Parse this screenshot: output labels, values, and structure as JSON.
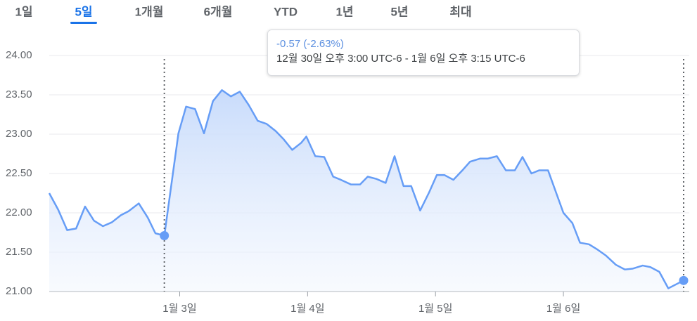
{
  "chart_data": {
    "type": "area-line",
    "tabs": [
      "1일",
      "5일",
      "1개월",
      "6개월",
      "YTD",
      "1년",
      "5년",
      "최대"
    ],
    "selected_tab": "5일",
    "tooltip": {
      "change": "-0.57 (-2.63%)",
      "range": "12월 30일 오후 3:00 UTC-6 - 1월 6일 오후 3:15 UTC-6"
    },
    "x": [
      1.98,
      2.05,
      2.12,
      2.19,
      2.26,
      2.33,
      2.4,
      2.47,
      2.54,
      2.6,
      2.68,
      2.75,
      2.81,
      2.88,
      2.99,
      3.05,
      3.12,
      3.19,
      3.26,
      3.33,
      3.4,
      3.47,
      3.54,
      3.61,
      3.68,
      3.75,
      3.81,
      3.88,
      3.95,
      3.99,
      4.06,
      4.13,
      4.2,
      4.26,
      4.34,
      4.41,
      4.47,
      4.54,
      4.61,
      4.68,
      4.75,
      4.81,
      4.88,
      4.95,
      5.01,
      5.07,
      5.14,
      5.21,
      5.27,
      5.35,
      5.41,
      5.48,
      5.55,
      5.62,
      5.68,
      5.75,
      5.81,
      5.88,
      6.0,
      6.07,
      6.13,
      6.2,
      6.26,
      6.33,
      6.41,
      6.48,
      6.54,
      6.62,
      6.68,
      6.75,
      6.82,
      6.94
    ],
    "series": [
      {
        "color": "#669df6",
        "values": [
          22.25,
          22.04,
          21.78,
          21.8,
          22.08,
          21.9,
          21.83,
          21.88,
          21.97,
          22.02,
          22.12,
          21.94,
          21.74,
          21.71,
          23.01,
          23.35,
          23.32,
          23.01,
          23.42,
          23.56,
          23.48,
          23.54,
          23.37,
          23.17,
          23.13,
          23.04,
          22.94,
          22.8,
          22.89,
          22.97,
          22.72,
          22.71,
          22.46,
          22.42,
          22.36,
          22.36,
          22.46,
          22.43,
          22.38,
          22.72,
          22.34,
          22.34,
          22.03,
          22.26,
          22.48,
          22.48,
          22.42,
          22.54,
          22.65,
          22.69,
          22.69,
          22.72,
          22.54,
          22.54,
          22.71,
          22.5,
          22.54,
          22.54,
          22.0,
          21.87,
          21.62,
          21.6,
          21.54,
          21.46,
          21.34,
          21.28,
          21.29,
          21.33,
          21.31,
          21.25,
          21.04,
          21.14
        ]
      }
    ],
    "markers": [
      13,
      71
    ],
    "xlim": [
      1.98,
      6.94
    ],
    "xticks": [
      {
        "value": 3,
        "label": "1월 3일"
      },
      {
        "value": 4,
        "label": "1월 4일"
      },
      {
        "value": 5,
        "label": "1월 5일"
      },
      {
        "value": 6,
        "label": "1월 6일"
      }
    ],
    "ylim": [
      21,
      24
    ],
    "yticks": [
      {
        "value": 21,
        "label": "21.00"
      },
      {
        "value": 21.5,
        "label": "21.50"
      },
      {
        "value": 22,
        "label": "22.00"
      },
      {
        "value": 22.5,
        "label": "22.50"
      },
      {
        "value": 23,
        "label": "23.00"
      },
      {
        "value": 23.5,
        "label": "23.50"
      },
      {
        "value": 24,
        "label": "24.00"
      }
    ],
    "grid": true
  }
}
